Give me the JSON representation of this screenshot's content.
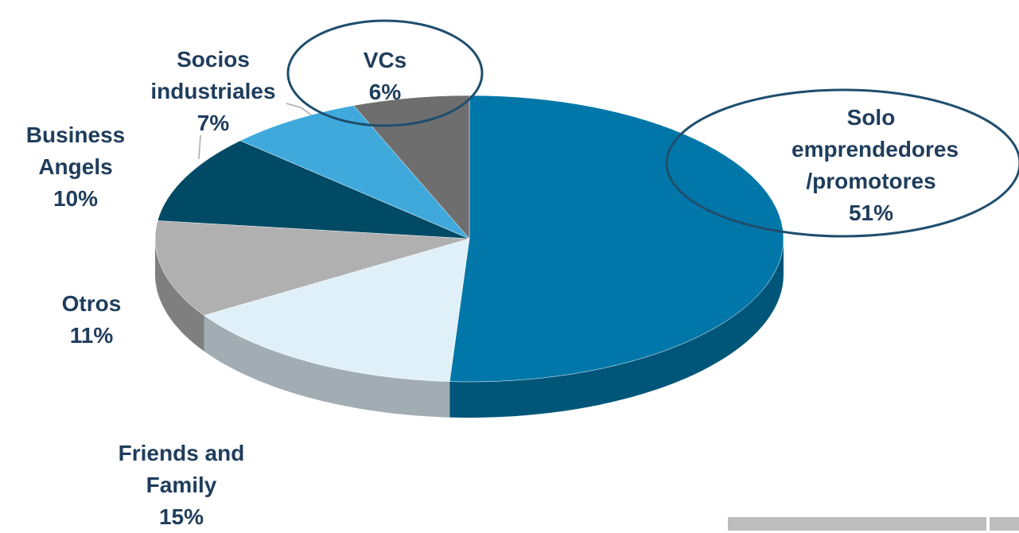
{
  "chart_data": {
    "type": "pie",
    "categories": [
      "Solo emprendedores /promotores",
      "Friends and Family",
      "Otros",
      "Business Angels",
      "Socios industriales",
      "VCs"
    ],
    "values": [
      51,
      15,
      11,
      10,
      7,
      6
    ],
    "value_labels": [
      "51%",
      "15%",
      "11%",
      "10%",
      "7%",
      "6%"
    ],
    "colors": [
      "#0077a8",
      "#dff0f8",
      "#b0b0b0",
      "#004a66",
      "#3fa9dc",
      "#6e6e6e"
    ]
  }
}
